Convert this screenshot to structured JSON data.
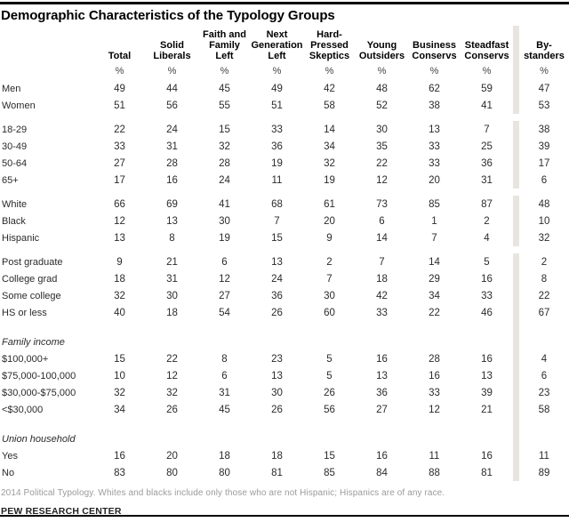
{
  "title": "Demographic Characteristics of the Typology Groups",
  "table": {
    "unit": "%",
    "columns": [
      {
        "id": "total",
        "label": "Total"
      },
      {
        "id": "solid-liberals",
        "label": "Solid\nLiberals"
      },
      {
        "id": "faith-and-family-left",
        "label": "Faith and\nFamily\nLeft"
      },
      {
        "id": "next-generation-left",
        "label": "Next\nGeneration\nLeft"
      },
      {
        "id": "hard-pressed-skeptics",
        "label": "Hard-\nPressed\nSkeptics"
      },
      {
        "id": "young-outsiders",
        "label": "Young\nOutsiders"
      },
      {
        "id": "business-conservs",
        "label": "Business\nConservs"
      },
      {
        "id": "steadfast-conservs",
        "label": "Steadfast\nConservs"
      },
      {
        "id": "bystanders",
        "label": "By-\nstanders"
      }
    ],
    "groups": [
      {
        "section": null,
        "white_gap_after": true,
        "rows": [
          {
            "label": "Men",
            "values": [
              49,
              44,
              45,
              49,
              42,
              48,
              62,
              59,
              47
            ]
          },
          {
            "label": "Women",
            "values": [
              51,
              56,
              55,
              51,
              58,
              52,
              38,
              41,
              53
            ]
          }
        ]
      },
      {
        "section": null,
        "white_gap_after": true,
        "rows": [
          {
            "label": "18-29",
            "values": [
              22,
              24,
              15,
              33,
              14,
              30,
              13,
              7,
              38
            ]
          },
          {
            "label": "30-49",
            "values": [
              33,
              31,
              32,
              36,
              34,
              35,
              33,
              25,
              39
            ]
          },
          {
            "label": "50-64",
            "values": [
              27,
              28,
              28,
              19,
              32,
              22,
              33,
              36,
              17
            ]
          },
          {
            "label": "65+",
            "values": [
              17,
              16,
              24,
              11,
              19,
              12,
              20,
              31,
              6
            ]
          }
        ]
      },
      {
        "section": null,
        "white_gap_after": true,
        "rows": [
          {
            "label": "White",
            "values": [
              66,
              69,
              41,
              68,
              61,
              73,
              85,
              87,
              48
            ]
          },
          {
            "label": "Black",
            "values": [
              12,
              13,
              30,
              7,
              20,
              6,
              1,
              2,
              10
            ]
          },
          {
            "label": "Hispanic",
            "values": [
              13,
              8,
              19,
              15,
              9,
              14,
              7,
              4,
              32
            ]
          }
        ]
      },
      {
        "section": null,
        "white_gap_after": false,
        "rows": [
          {
            "label": "Post graduate",
            "values": [
              9,
              21,
              6,
              13,
              2,
              7,
              14,
              5,
              2
            ]
          },
          {
            "label": "College grad",
            "values": [
              18,
              31,
              12,
              24,
              7,
              18,
              29,
              16,
              8
            ]
          },
          {
            "label": "Some college",
            "values": [
              32,
              30,
              27,
              36,
              30,
              42,
              34,
              33,
              22
            ]
          },
          {
            "label": "HS or less",
            "values": [
              40,
              18,
              54,
              26,
              60,
              33,
              22,
              46,
              67
            ]
          }
        ]
      },
      {
        "section": "Family income",
        "white_gap_after": false,
        "rows": [
          {
            "label": "$100,000+",
            "values": [
              15,
              22,
              8,
              23,
              5,
              16,
              28,
              16,
              4
            ]
          },
          {
            "label": "$75,000-100,000",
            "values": [
              10,
              12,
              6,
              13,
              5,
              13,
              16,
              13,
              6
            ]
          },
          {
            "label": "$30,000-$75,000",
            "values": [
              32,
              32,
              31,
              30,
              26,
              36,
              33,
              39,
              23
            ]
          },
          {
            "label": "<$30,000",
            "values": [
              34,
              26,
              45,
              26,
              56,
              27,
              12,
              21,
              58
            ]
          }
        ]
      },
      {
        "section": "Union household",
        "white_gap_after": false,
        "rows": [
          {
            "label": "Yes",
            "values": [
              16,
              20,
              18,
              18,
              15,
              16,
              11,
              16,
              11
            ]
          },
          {
            "label": "No",
            "values": [
              83,
              80,
              80,
              81,
              85,
              84,
              88,
              81,
              89
            ]
          }
        ]
      }
    ]
  },
  "footer": {
    "note": "2014 Political Typology. Whites and blacks include only those who are not Hispanic; Hispanics are of any race.",
    "source": "PEW RESEARCH CENTER"
  },
  "colors": {
    "separator_bar": "#e8e5e0",
    "rule": "#000000",
    "body_text": "#2b2b2b",
    "note_text": "#9b9b9b"
  }
}
